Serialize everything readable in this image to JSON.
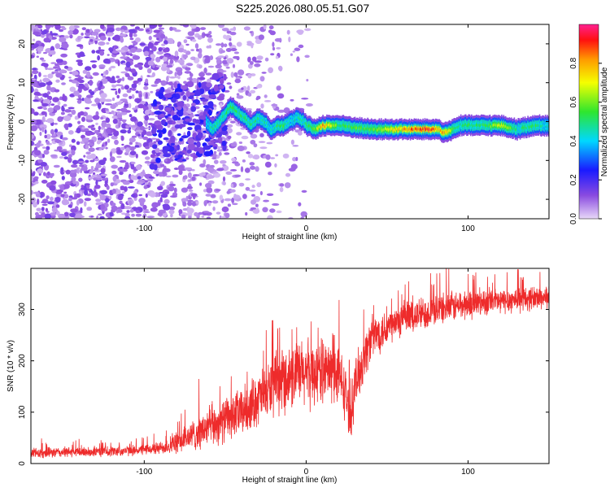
{
  "figure_title": "S225.2026.080.05.51.G07",
  "chart_data": [
    {
      "type": "heatmap",
      "title": "S225.2026.080.05.51.G07",
      "xlabel": "Height of straight line (km)",
      "ylabel": "Frequency (Hz)",
      "xlim": [
        -170,
        150
      ],
      "ylim": [
        -25,
        25
      ],
      "xticks": [
        -100,
        0,
        100
      ],
      "yticks": [
        -20,
        -10,
        0,
        10,
        20
      ],
      "xtick_labels": [
        "-100",
        "0",
        "100"
      ],
      "ytick_labels": [
        "-20",
        "-10",
        "0",
        "10",
        "20"
      ],
      "colorbar": {
        "label": "Normalized spectral amplitude",
        "range": [
          0.0,
          1.0
        ],
        "ticks": [
          0.0,
          0.2,
          0.4,
          0.6,
          0.8
        ],
        "tick_labels": [
          "0.0",
          "0.2",
          "0.4",
          "0.6",
          "0.8"
        ],
        "colors": [
          "#e8d8f8",
          "#8a4be0",
          "#1a1aff",
          "#00d8ff",
          "#2ee62e",
          "#f5ff00",
          "#ff9a00",
          "#ff1010",
          "#ff2090"
        ]
      },
      "ridge": {
        "x": [
          -62,
          -58,
          -52,
          -47,
          -42,
          -38,
          -34,
          -30,
          -26,
          -22,
          -18,
          -14,
          -10,
          -6,
          -2,
          0,
          5,
          10,
          20,
          40,
          60,
          75,
          82,
          85,
          90,
          95,
          100,
          110,
          120,
          130,
          140,
          150
        ],
        "frequency": [
          0,
          -2,
          1,
          4,
          2,
          1,
          -1,
          1,
          0,
          -2,
          -1,
          -1,
          0,
          1,
          0,
          -1,
          -2,
          -1,
          -1,
          -2,
          -2,
          -2,
          -2,
          -3,
          -2,
          -1,
          -1,
          -1,
          -1,
          -2,
          -1,
          -1
        ],
        "amplitude": [
          0.4,
          0.5,
          0.5,
          0.6,
          0.5,
          0.55,
          0.5,
          0.5,
          0.5,
          0.45,
          0.55,
          0.55,
          0.45,
          0.5,
          0.45,
          0.55,
          0.6,
          0.85,
          0.55,
          0.6,
          0.85,
          0.95,
          0.85,
          0.9,
          0.6,
          0.5,
          0.55,
          0.55,
          0.7,
          0.5,
          0.55,
          0.45
        ]
      }
    },
    {
      "type": "line",
      "xlabel": "Height of straight line (km)",
      "ylabel": "SNR (10 * v/v)",
      "xlim": [
        -170,
        150
      ],
      "ylim": [
        0,
        380
      ],
      "xticks": [
        -100,
        0,
        100
      ],
      "yticks": [
        0,
        100,
        200,
        300
      ],
      "xtick_labels": [
        "-100",
        "0",
        "100"
      ],
      "ytick_labels": [
        "0",
        "100",
        "200",
        "300"
      ],
      "series": [
        {
          "name": "SNR",
          "color": "#ee2b2b",
          "x": [
            -170,
            -150,
            -130,
            -110,
            -100,
            -90,
            -80,
            -70,
            -60,
            -50,
            -40,
            -30,
            -20,
            -10,
            0,
            10,
            20,
            25,
            27,
            30,
            35,
            40,
            50,
            60,
            70,
            80,
            90,
            100,
            110,
            120,
            130,
            140,
            150
          ],
          "y": [
            20,
            22,
            23,
            25,
            27,
            30,
            40,
            55,
            70,
            85,
            100,
            125,
            150,
            170,
            175,
            180,
            175,
            130,
            80,
            150,
            200,
            245,
            265,
            280,
            290,
            300,
            305,
            310,
            315,
            315,
            320,
            322,
            325
          ],
          "noise": [
            12,
            12,
            12,
            12,
            12,
            15,
            25,
            35,
            45,
            50,
            55,
            60,
            70,
            75,
            80,
            70,
            75,
            60,
            50,
            60,
            60,
            50,
            45,
            40,
            40,
            35,
            35,
            35,
            30,
            30,
            30,
            28,
            28
          ]
        }
      ]
    }
  ]
}
